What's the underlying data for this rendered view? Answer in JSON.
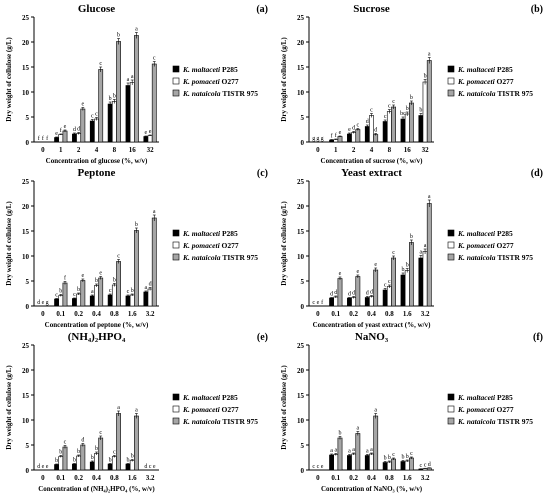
{
  "legend": [
    {
      "label": "K. maltaceti",
      "strain": "P285",
      "fill": "#000000"
    },
    {
      "label": "K. pomaceti",
      "strain": "O277",
      "fill": "#ffffff"
    },
    {
      "label": "K. nataicola",
      "strain": "TISTR 975",
      "fill": "#a6a6a6"
    }
  ],
  "chart_data": [
    {
      "type": "bar",
      "title": "Glucose",
      "panel_letter": "(a)",
      "ylabel": "Dry weight of cellulose (g/L)",
      "xlabel": "Concentration of glucose (%, w/v)",
      "ylim": [
        0,
        25
      ],
      "yticks": [
        0,
        5,
        10,
        15,
        20,
        25
      ],
      "categories": [
        "0",
        "1",
        "2",
        "4",
        "8",
        "16",
        "32"
      ],
      "series": [
        {
          "name": "K. maltaceti P285",
          "values": [
            0,
            0.9,
            1.6,
            4.2,
            7.6,
            11.3,
            1.1
          ],
          "errors": [
            0,
            0.1,
            0.2,
            0.3,
            0.4,
            0.5,
            0.1
          ],
          "letters": [
            "f",
            "e",
            "d",
            "c",
            "b",
            "a",
            "e"
          ]
        },
        {
          "name": "K. pomaceti O277",
          "values": [
            0,
            1.5,
            1.7,
            4.6,
            8.1,
            11.9,
            1.3
          ],
          "errors": [
            0,
            0.1,
            0.2,
            0.3,
            0.4,
            0.5,
            0.1
          ],
          "letters": [
            "f",
            "f",
            "d",
            "c",
            "b",
            "a",
            "e"
          ]
        },
        {
          "name": "K. nataicola TISTR 975",
          "values": [
            0,
            2.2,
            6.6,
            14.5,
            20.1,
            21.3,
            15.6
          ],
          "errors": [
            0,
            0.2,
            0.3,
            0.5,
            0.6,
            0.6,
            0.5
          ],
          "letters": [
            "f",
            "e",
            "e",
            "c",
            "b",
            "a",
            "c"
          ]
        }
      ]
    },
    {
      "type": "bar",
      "title": "Sucrose",
      "panel_letter": "(b)",
      "ylabel": "Dry weight of cellulose (g/L)",
      "xlabel": "Concentration of sucrose (%, w/v)",
      "ylim": [
        0,
        25
      ],
      "yticks": [
        0,
        5,
        10,
        15,
        20,
        25
      ],
      "categories": [
        "0",
        "1",
        "2",
        "4",
        "8",
        "16",
        "32"
      ],
      "series": [
        {
          "name": "K. maltaceti P285",
          "values": [
            0,
            0.4,
            1.6,
            3.1,
            4.1,
            4.6,
            5.3
          ],
          "errors": [
            0,
            0.1,
            0.2,
            0.3,
            0.3,
            0.4,
            0.4
          ],
          "letters": [
            "g",
            "f",
            "e",
            "d",
            "c",
            "bc",
            "b"
          ]
        },
        {
          "name": "K. pomaceti O277",
          "values": [
            0,
            0.5,
            1.9,
            5.3,
            6.1,
            5.6,
            12.0
          ],
          "errors": [
            0,
            0.1,
            0.2,
            0.4,
            0.4,
            0.4,
            0.5
          ],
          "letters": [
            "g",
            "f",
            "d",
            "c",
            "c",
            "b",
            "b"
          ]
        },
        {
          "name": "K. nataicola TISTR 975",
          "values": [
            0,
            1.1,
            2.5,
            1.5,
            7.0,
            7.8,
            16.3
          ],
          "errors": [
            0,
            0.1,
            0.2,
            0.2,
            0.4,
            0.4,
            0.6
          ],
          "letters": [
            "g",
            "e",
            "c",
            "d",
            "c",
            "b",
            "a"
          ]
        }
      ]
    },
    {
      "type": "bar",
      "title": "Peptone",
      "panel_letter": "(c)",
      "ylabel": "Dry weight of cellulose (g/L)",
      "xlabel": "Concentration of peptone (%, w/v)",
      "ylim": [
        0,
        25
      ],
      "yticks": [
        0,
        5,
        10,
        15,
        20,
        25
      ],
      "categories": [
        "0",
        "0.1",
        "0.2",
        "0.4",
        "0.8",
        "1.6",
        "3.2"
      ],
      "series": [
        {
          "name": "K. maltaceti P285",
          "values": [
            0,
            1.4,
            1.5,
            2.0,
            2.2,
            2.0,
            2.8
          ],
          "errors": [
            0,
            0.1,
            0.1,
            0.2,
            0.2,
            0.2,
            0.2
          ],
          "letters": [
            "d",
            "c",
            "c",
            "a",
            "c",
            "c",
            "a"
          ]
        },
        {
          "name": "K. pomaceti O277",
          "values": [
            0,
            2.1,
            2.4,
            4.1,
            4.2,
            2.2,
            3.4
          ],
          "errors": [
            0,
            0.2,
            0.2,
            0.3,
            0.3,
            0.2,
            0.3
          ],
          "letters": [
            "e",
            "b",
            "b",
            "b",
            "b",
            "b",
            "d"
          ]
        },
        {
          "name": "K. nataicola TISTR 975",
          "values": [
            0,
            4.6,
            5.1,
            5.6,
            8.9,
            15.1,
            17.6
          ],
          "errors": [
            0,
            0.3,
            0.3,
            0.3,
            0.4,
            0.5,
            0.6
          ],
          "letters": [
            "g",
            "f",
            "e",
            "e",
            "c",
            "b",
            "a"
          ]
        }
      ]
    },
    {
      "type": "bar",
      "title": "Yeast extract",
      "panel_letter": "(d)",
      "ylabel": "Dry weight of cellulose (g/L)",
      "xlabel": "Concentration of yeast extract (%, w/v)",
      "ylim": [
        0,
        25
      ],
      "yticks": [
        0,
        5,
        10,
        15,
        20,
        25
      ],
      "categories": [
        "0",
        "0.1",
        "0.2",
        "0.4",
        "0.8",
        "1.6",
        "3.2"
      ],
      "series": [
        {
          "name": "K. maltaceti P285",
          "values": [
            0,
            1.6,
            1.6,
            1.7,
            3.2,
            6.2,
            9.6
          ],
          "errors": [
            0,
            0.1,
            0.1,
            0.2,
            0.3,
            0.4,
            0.5
          ],
          "letters": [
            "c",
            "d",
            "d",
            "d",
            "c",
            "b",
            "a"
          ]
        },
        {
          "name": "K. pomaceti O277",
          "values": [
            0,
            1.8,
            1.7,
            1.9,
            3.9,
            7.1,
            10.9
          ],
          "errors": [
            0,
            0.2,
            0.2,
            0.2,
            0.3,
            0.4,
            0.5
          ],
          "letters": [
            "e",
            "d",
            "d",
            "d",
            "c",
            "b",
            "a"
          ]
        },
        {
          "name": "K. nataicola TISTR 975",
          "values": [
            0,
            5.5,
            5.9,
            7.2,
            9.6,
            12.7,
            20.5
          ],
          "errors": [
            0,
            0.3,
            0.3,
            0.4,
            0.4,
            0.5,
            0.7
          ],
          "letters": [
            "f",
            "e",
            "e",
            "e",
            "c",
            "b",
            "a"
          ]
        }
      ]
    },
    {
      "type": "bar",
      "title": "(NH₄)₂HPO₄",
      "panel_letter": "(e)",
      "ylabel": "Dry weight of cellulose (g/L)",
      "xlabel": "Concentration of (NH₄)₂HPO₄ (%, w/v)",
      "ylim": [
        0,
        25
      ],
      "yticks": [
        0,
        5,
        10,
        15,
        20,
        25
      ],
      "categories": [
        "0",
        "0.1",
        "0.2",
        "0.4",
        "0.8",
        "1.6",
        "3.2"
      ],
      "series": [
        {
          "name": "K. maltaceti P285",
          "values": [
            0,
            1.1,
            1.2,
            1.6,
            1.2,
            1.2,
            0
          ],
          "errors": [
            0,
            0.1,
            0.1,
            0.2,
            0.1,
            0.1,
            0
          ],
          "letters": [
            "d",
            "b",
            "b",
            "b",
            "b",
            "b",
            "d"
          ]
        },
        {
          "name": "K. pomaceti O277",
          "values": [
            0,
            2.7,
            2.8,
            3.3,
            2.7,
            1.9,
            0
          ],
          "errors": [
            0,
            0.2,
            0.2,
            0.3,
            0.2,
            0.2,
            0
          ],
          "letters": [
            "e",
            "b",
            "b",
            "b",
            "c",
            "b",
            "c"
          ]
        },
        {
          "name": "K. nataicola TISTR 975",
          "values": [
            0,
            4.6,
            5.0,
            6.4,
            11.3,
            10.8,
            0
          ],
          "errors": [
            0,
            0.3,
            0.3,
            0.4,
            0.5,
            0.5,
            0
          ],
          "letters": [
            "e",
            "c",
            "d",
            "c",
            "a",
            "a",
            "e"
          ]
        }
      ]
    },
    {
      "type": "bar",
      "title": "NaNO₃",
      "panel_letter": "(f)",
      "ylabel": "Dry weight of cellulose (g/L)",
      "xlabel": "Concentration of NaNO₃ (%, w/v)",
      "ylim": [
        0,
        25
      ],
      "yticks": [
        0,
        5,
        10,
        15,
        20,
        25
      ],
      "categories": [
        "0",
        "0.1",
        "0.2",
        "0.4",
        "0.8",
        "1.6",
        "3.2"
      ],
      "series": [
        {
          "name": "K. maltaceti P285",
          "values": [
            0,
            3.0,
            2.9,
            2.9,
            1.5,
            1.7,
            0.2
          ],
          "errors": [
            0,
            0.2,
            0.2,
            0.2,
            0.2,
            0.2,
            0.05
          ],
          "letters": [
            "c",
            "a",
            "a",
            "a",
            "b",
            "b",
            "c"
          ]
        },
        {
          "name": "K. pomaceti O277",
          "values": [
            0,
            3.1,
            3.2,
            3.2,
            1.6,
            1.8,
            0.3
          ],
          "errors": [
            0,
            0.2,
            0.2,
            0.2,
            0.2,
            0.2,
            0.05
          ],
          "letters": [
            "c",
            "a",
            "a",
            "a",
            "b",
            "b",
            "c"
          ]
        },
        {
          "name": "K. nataicola TISTR 975",
          "values": [
            0,
            6.4,
            7.3,
            10.8,
            2.2,
            2.4,
            0.4
          ],
          "errors": [
            0,
            0.3,
            0.4,
            0.5,
            0.2,
            0.2,
            0.05
          ],
          "letters": [
            "e",
            "b",
            "a",
            "a",
            "c",
            "c",
            "d"
          ]
        }
      ]
    }
  ]
}
